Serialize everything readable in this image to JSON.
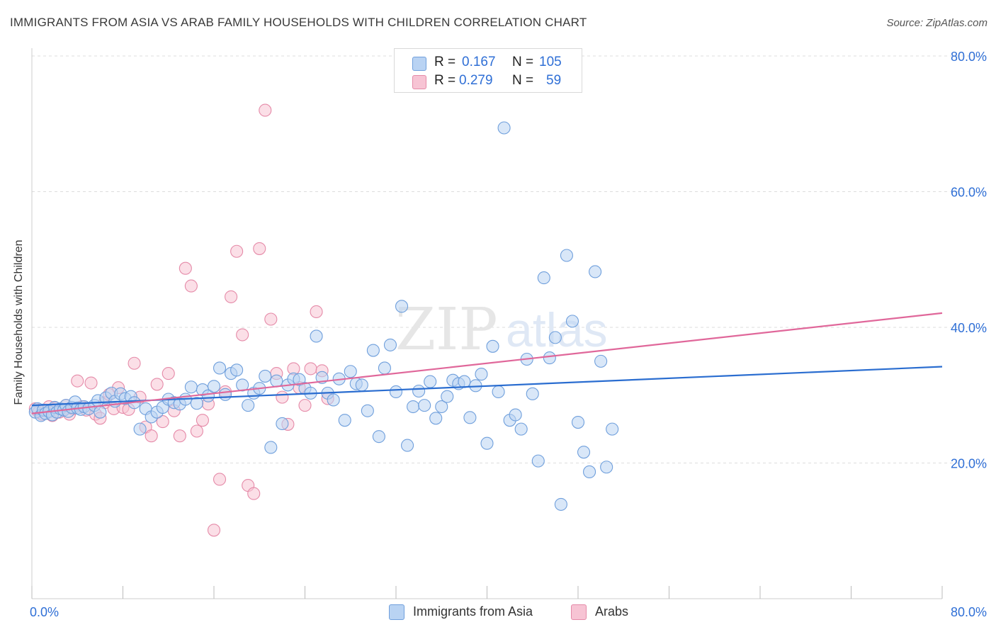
{
  "header": {
    "title": "IMMIGRANTS FROM ASIA VS ARAB FAMILY HOUSEHOLDS WITH CHILDREN CORRELATION CHART",
    "source": "Source: ZipAtlas.com"
  },
  "watermark": {
    "zip": "ZIP",
    "atlas": "atlas"
  },
  "legend": {
    "rows": [
      {
        "r_label": "R =",
        "r_value": "0.167",
        "n_label": "N =",
        "n_value": "105"
      },
      {
        "r_label": "R =",
        "r_value": "0.279",
        "n_label": "N =",
        "n_value": "59"
      }
    ]
  },
  "bottom_legend": {
    "series_a": "Immigrants from Asia",
    "series_b": "Arabs"
  },
  "colors": {
    "blue_fill": "#b9d3f3",
    "blue_stroke": "#6f9fdc",
    "blue_line": "#2a6dd0",
    "pink_fill": "#f7c4d4",
    "pink_stroke": "#e58aa8",
    "pink_line": "#e0679a",
    "tick_label": "#2f6fd6",
    "grid": "#dddddd"
  },
  "chart_data": {
    "type": "scatter",
    "title": "IMMIGRANTS FROM ASIA VS ARAB FAMILY HOUSEHOLDS WITH CHILDREN CORRELATION CHART",
    "xlabel": "",
    "ylabel": "Family Households with Children",
    "xlim": [
      0,
      80
    ],
    "ylim": [
      0,
      80
    ],
    "x_tick_labels": [
      "0.0%",
      "80.0%"
    ],
    "y_ticks": [
      20,
      40,
      60,
      80
    ],
    "y_tick_labels": [
      "20.0%",
      "40.0%",
      "60.0%",
      "80.0%"
    ],
    "grid": true,
    "legend_position": "top-center",
    "series": [
      {
        "name": "Immigrants from Asia",
        "R": 0.167,
        "N": 105,
        "trend": {
          "x0": 0,
          "y0": 28.5,
          "x1": 80,
          "y1": 34.2
        },
        "points": [
          [
            0.3,
            27.5
          ],
          [
            0.5,
            28.0
          ],
          [
            0.8,
            27.0
          ],
          [
            1.0,
            27.8
          ],
          [
            1.2,
            27.3
          ],
          [
            1.5,
            27.6
          ],
          [
            1.8,
            27.1
          ],
          [
            2.0,
            28.2
          ],
          [
            2.2,
            27.5
          ],
          [
            2.5,
            28.0
          ],
          [
            2.8,
            27.8
          ],
          [
            3.0,
            28.5
          ],
          [
            3.2,
            27.6
          ],
          [
            3.5,
            28.2
          ],
          [
            3.8,
            29.0
          ],
          [
            4.0,
            28.1
          ],
          [
            4.3,
            27.9
          ],
          [
            4.6,
            28.3
          ],
          [
            5.0,
            28.0
          ],
          [
            5.5,
            28.5
          ],
          [
            5.8,
            29.2
          ],
          [
            6.0,
            27.5
          ],
          [
            6.5,
            29.6
          ],
          [
            7.0,
            30.3
          ],
          [
            7.3,
            29.1
          ],
          [
            7.8,
            30.2
          ],
          [
            8.2,
            29.5
          ],
          [
            8.7,
            29.8
          ],
          [
            9.0,
            28.9
          ],
          [
            9.5,
            25.0
          ],
          [
            10.0,
            28.0
          ],
          [
            10.5,
            26.8
          ],
          [
            11.0,
            27.5
          ],
          [
            11.5,
            28.2
          ],
          [
            12.0,
            29.4
          ],
          [
            12.5,
            28.9
          ],
          [
            13.0,
            28.7
          ],
          [
            13.5,
            29.4
          ],
          [
            14.0,
            31.2
          ],
          [
            14.5,
            28.8
          ],
          [
            15.0,
            30.8
          ],
          [
            15.5,
            29.9
          ],
          [
            16.0,
            31.3
          ],
          [
            16.5,
            34.0
          ],
          [
            17.0,
            30.1
          ],
          [
            17.5,
            33.2
          ],
          [
            18.0,
            33.7
          ],
          [
            18.5,
            31.5
          ],
          [
            19.0,
            28.5
          ],
          [
            19.5,
            30.3
          ],
          [
            20.0,
            31.0
          ],
          [
            20.5,
            32.8
          ],
          [
            21.0,
            22.3
          ],
          [
            21.5,
            32.1
          ],
          [
            22.0,
            25.8
          ],
          [
            22.5,
            31.5
          ],
          [
            23.0,
            32.4
          ],
          [
            23.5,
            32.3
          ],
          [
            24.0,
            31.0
          ],
          [
            24.5,
            30.3
          ],
          [
            25.0,
            38.7
          ],
          [
            25.5,
            32.6
          ],
          [
            26.0,
            30.3
          ],
          [
            26.5,
            29.3
          ],
          [
            27.0,
            32.4
          ],
          [
            27.5,
            26.3
          ],
          [
            28.0,
            33.5
          ],
          [
            28.5,
            31.7
          ],
          [
            29.0,
            31.5
          ],
          [
            29.5,
            27.7
          ],
          [
            30.0,
            36.6
          ],
          [
            30.5,
            23.9
          ],
          [
            31.0,
            34.0
          ],
          [
            31.5,
            37.4
          ],
          [
            32.0,
            30.5
          ],
          [
            32.5,
            43.1
          ],
          [
            33.0,
            22.6
          ],
          [
            33.5,
            28.3
          ],
          [
            34.0,
            30.6
          ],
          [
            34.5,
            28.5
          ],
          [
            35.0,
            32.0
          ],
          [
            35.5,
            26.6
          ],
          [
            36.0,
            28.3
          ],
          [
            36.5,
            29.8
          ],
          [
            37.0,
            32.2
          ],
          [
            37.5,
            31.7
          ],
          [
            38.0,
            32.0
          ],
          [
            38.5,
            26.7
          ],
          [
            39.0,
            31.4
          ],
          [
            39.5,
            33.1
          ],
          [
            40.0,
            22.9
          ],
          [
            40.5,
            37.2
          ],
          [
            41.0,
            30.5
          ],
          [
            41.5,
            69.4
          ],
          [
            42.0,
            26.3
          ],
          [
            42.5,
            27.1
          ],
          [
            43.0,
            25.0
          ],
          [
            43.5,
            35.3
          ],
          [
            44.0,
            30.2
          ],
          [
            44.5,
            20.3
          ],
          [
            45.0,
            47.3
          ],
          [
            45.5,
            35.5
          ],
          [
            46.0,
            38.5
          ],
          [
            46.5,
            13.9
          ],
          [
            47.0,
            50.6
          ],
          [
            47.5,
            40.9
          ],
          [
            48.0,
            26.0
          ],
          [
            48.5,
            21.6
          ],
          [
            49.0,
            18.7
          ],
          [
            49.5,
            48.2
          ],
          [
            50.0,
            35.0
          ],
          [
            50.5,
            19.4
          ],
          [
            51.0,
            25.0
          ]
        ]
      },
      {
        "name": "Arabs",
        "R": 0.279,
        "N": 59,
        "trend": {
          "x0": 0,
          "y0": 27.3,
          "x1": 80,
          "y1": 42.1
        },
        "points": [
          [
            0.3,
            28.0
          ],
          [
            0.6,
            27.5
          ],
          [
            0.9,
            27.2
          ],
          [
            1.2,
            27.8
          ],
          [
            1.5,
            28.3
          ],
          [
            1.8,
            27.0
          ],
          [
            2.1,
            28.1
          ],
          [
            2.4,
            27.5
          ],
          [
            2.7,
            27.9
          ],
          [
            3.0,
            28.5
          ],
          [
            3.3,
            27.2
          ],
          [
            3.6,
            28.0
          ],
          [
            4.0,
            32.1
          ],
          [
            4.4,
            28.3
          ],
          [
            4.8,
            27.8
          ],
          [
            5.2,
            31.8
          ],
          [
            5.6,
            27.2
          ],
          [
            6.0,
            26.6
          ],
          [
            6.4,
            28.9
          ],
          [
            6.8,
            30.1
          ],
          [
            7.2,
            28.0
          ],
          [
            7.6,
            31.1
          ],
          [
            8.0,
            28.2
          ],
          [
            8.5,
            27.9
          ],
          [
            9.0,
            34.7
          ],
          [
            9.5,
            29.7
          ],
          [
            10.0,
            25.3
          ],
          [
            10.5,
            24.0
          ],
          [
            11.0,
            31.6
          ],
          [
            11.5,
            26.1
          ],
          [
            12.0,
            33.2
          ],
          [
            12.5,
            27.7
          ],
          [
            13.0,
            24.0
          ],
          [
            13.5,
            48.7
          ],
          [
            14.0,
            46.1
          ],
          [
            14.5,
            24.7
          ],
          [
            15.0,
            26.3
          ],
          [
            15.5,
            28.7
          ],
          [
            16.0,
            10.1
          ],
          [
            16.5,
            17.6
          ],
          [
            17.0,
            30.5
          ],
          [
            17.5,
            44.5
          ],
          [
            18.0,
            51.2
          ],
          [
            18.5,
            38.9
          ],
          [
            19.0,
            16.7
          ],
          [
            19.5,
            15.5
          ],
          [
            20.0,
            51.6
          ],
          [
            20.5,
            72.0
          ],
          [
            21.0,
            41.2
          ],
          [
            21.5,
            33.2
          ],
          [
            22.0,
            29.7
          ],
          [
            22.5,
            25.7
          ],
          [
            23.0,
            33.9
          ],
          [
            23.5,
            31.1
          ],
          [
            24.0,
            28.5
          ],
          [
            24.5,
            33.9
          ],
          [
            25.0,
            42.3
          ],
          [
            25.5,
            33.6
          ],
          [
            26.0,
            29.5
          ]
        ]
      }
    ]
  }
}
